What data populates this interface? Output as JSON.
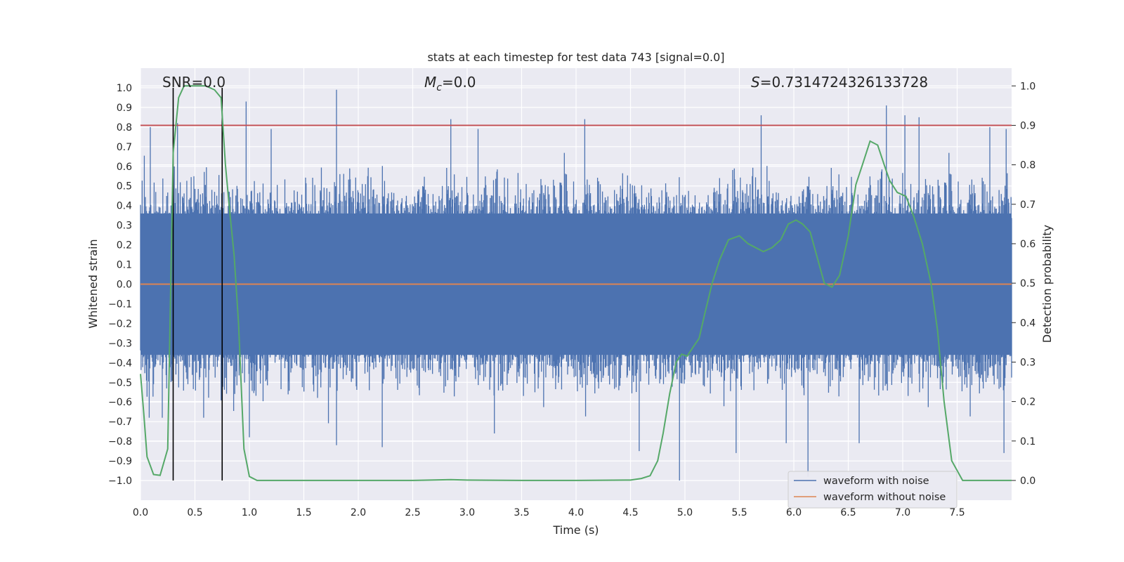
{
  "chart_data": {
    "type": "line",
    "title": "stats at each timestep for test data 743 [signal=0.0]",
    "xlabel": "Time (s)",
    "ylabel": "Whitened strain",
    "y2label": "Detection probability",
    "xlim": [
      0.0,
      8.0
    ],
    "ylim": [
      -1.1,
      1.1
    ],
    "y2lim": [
      -0.05,
      1.045
    ],
    "xticks": [
      "0.0",
      "0.5",
      "1.0",
      "1.5",
      "2.0",
      "2.5",
      "3.0",
      "3.5",
      "4.0",
      "4.5",
      "5.0",
      "5.5",
      "6.0",
      "6.5",
      "7.0",
      "7.5"
    ],
    "yticks": [
      "1.0",
      "0.9",
      "0.8",
      "0.7",
      "0.6",
      "0.5",
      "0.4",
      "0.3",
      "0.2",
      "0.1",
      "0.0",
      "−0.1",
      "−0.2",
      "−0.3",
      "−0.4",
      "−0.5",
      "−0.6",
      "−0.7",
      "−0.8",
      "−0.9",
      "−1.0"
    ],
    "y2ticks": [
      "1.0",
      "0.9",
      "0.8",
      "0.7",
      "0.6",
      "0.5",
      "0.4",
      "0.3",
      "0.2",
      "0.1",
      "0.0"
    ],
    "annotations": {
      "snr_label": "SNR=0.0",
      "mc_symbol": "M",
      "mc_sub": "c",
      "mc_value": "=0.0",
      "s_symbol": "S",
      "s_value": "=0.7314724326133728"
    },
    "threshold_line": {
      "y2": 0.9,
      "color": "#c44e52"
    },
    "vertical_lines": [
      0.3,
      0.75
    ],
    "series": [
      {
        "name": "waveform with noise",
        "color": "#4c72b0",
        "envelope_approx": {
          "typical_peak_abs": 0.45,
          "max_spikes": [
            {
              "x": 0.09,
              "y": 0.8
            },
            {
              "x": 0.34,
              "y": 0.82
            },
            {
              "x": 0.97,
              "y": 0.93
            },
            {
              "x": 1.2,
              "y": 0.79
            },
            {
              "x": 1.8,
              "y": 0.99
            },
            {
              "x": 2.85,
              "y": 0.84
            },
            {
              "x": 3.1,
              "y": 0.79
            },
            {
              "x": 4.08,
              "y": 0.84
            },
            {
              "x": 5.7,
              "y": 0.86
            },
            {
              "x": 6.85,
              "y": 0.91
            },
            {
              "x": 7.02,
              "y": 0.86
            },
            {
              "x": 7.15,
              "y": 0.85
            },
            {
              "x": 7.8,
              "y": 0.8
            },
            {
              "x": 7.95,
              "y": 0.79
            }
          ],
          "min_spikes": [
            {
              "x": 0.08,
              "y": -0.68
            },
            {
              "x": 0.2,
              "y": -0.68
            },
            {
              "x": 0.58,
              "y": -0.68
            },
            {
              "x": 1.0,
              "y": -0.78
            },
            {
              "x": 1.8,
              "y": -0.82
            },
            {
              "x": 2.22,
              "y": -0.83
            },
            {
              "x": 3.25,
              "y": -0.76
            },
            {
              "x": 4.58,
              "y": -0.85
            },
            {
              "x": 4.95,
              "y": -1.0
            },
            {
              "x": 5.47,
              "y": -0.86
            },
            {
              "x": 5.93,
              "y": -0.81
            },
            {
              "x": 6.13,
              "y": -0.98
            },
            {
              "x": 6.6,
              "y": -0.81
            },
            {
              "x": 7.93,
              "y": -0.86
            }
          ]
        }
      },
      {
        "name": "waveform without noise",
        "color": "#dd8452",
        "x": [
          0.0,
          8.0
        ],
        "y": [
          0.0,
          0.0
        ]
      },
      {
        "name": "detection probability",
        "axis": "y2",
        "color": "#55a868",
        "x": [
          0.0,
          0.03,
          0.06,
          0.12,
          0.18,
          0.25,
          0.3,
          0.35,
          0.4,
          0.5,
          0.6,
          0.68,
          0.74,
          0.78,
          0.82,
          0.86,
          0.9,
          0.95,
          1.0,
          1.07,
          1.5,
          2.0,
          2.5,
          2.85,
          3.0,
          3.5,
          4.0,
          4.5,
          4.6,
          4.68,
          4.75,
          4.8,
          4.86,
          4.92,
          4.97,
          5.02,
          5.08,
          5.13,
          5.18,
          5.25,
          5.32,
          5.4,
          5.5,
          5.58,
          5.65,
          5.72,
          5.8,
          5.88,
          5.95,
          6.02,
          6.08,
          6.15,
          6.22,
          6.28,
          6.35,
          6.42,
          6.5,
          6.57,
          6.63,
          6.7,
          6.77,
          6.83,
          6.88,
          6.95,
          7.03,
          7.1,
          7.18,
          7.26,
          7.32,
          7.38,
          7.45,
          7.55,
          8.0
        ],
        "y": [
          0.27,
          0.17,
          0.06,
          0.015,
          0.013,
          0.08,
          0.83,
          0.97,
          1.0,
          1.0,
          1.0,
          0.99,
          0.97,
          0.8,
          0.68,
          0.57,
          0.4,
          0.08,
          0.01,
          0.0,
          0.0,
          0.0,
          0.0,
          0.002,
          0.001,
          0.0,
          0.0,
          0.001,
          0.005,
          0.012,
          0.05,
          0.12,
          0.22,
          0.3,
          0.32,
          0.315,
          0.34,
          0.36,
          0.42,
          0.5,
          0.56,
          0.61,
          0.62,
          0.6,
          0.59,
          0.58,
          0.59,
          0.61,
          0.65,
          0.66,
          0.65,
          0.63,
          0.56,
          0.5,
          0.49,
          0.52,
          0.62,
          0.75,
          0.8,
          0.86,
          0.85,
          0.8,
          0.76,
          0.73,
          0.72,
          0.67,
          0.6,
          0.5,
          0.38,
          0.2,
          0.05,
          0.0,
          0.0
        ]
      }
    ],
    "legend": {
      "placement": "lower-right",
      "entries": [
        {
          "label": "waveform with noise",
          "color": "#4c72b0"
        },
        {
          "label": "waveform without noise",
          "color": "#dd8452"
        }
      ]
    },
    "grid": true,
    "style": {
      "background": "#eaeaf2",
      "grid_color": "#ffffff"
    }
  }
}
